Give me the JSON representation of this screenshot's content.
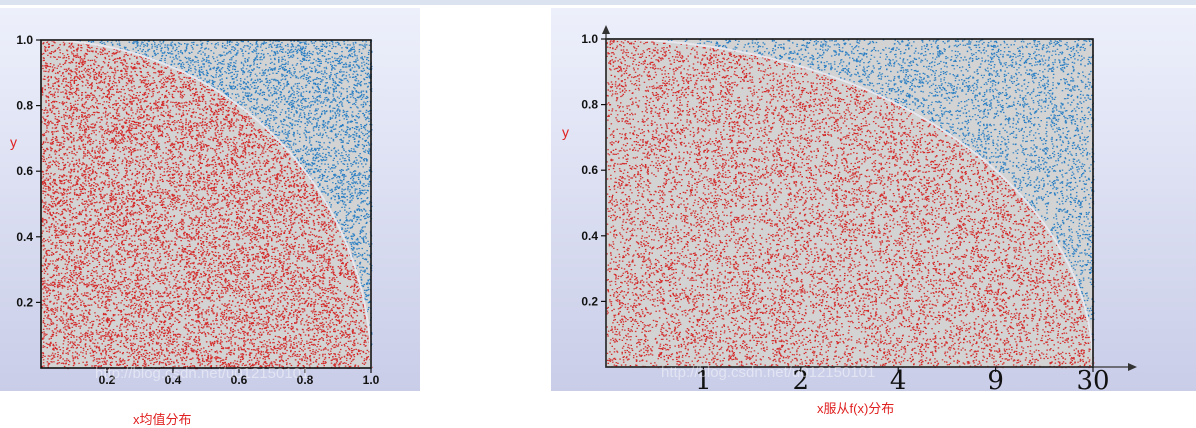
{
  "chart_data": [
    {
      "type": "scatter",
      "title": "",
      "xlabel": "",
      "ylabel": "y",
      "xlim": [
        0,
        1
      ],
      "ylim": [
        0,
        1
      ],
      "x_ticks": [
        "0.2",
        "0.4",
        "0.6",
        "0.8",
        "1.0"
      ],
      "y_ticks": [
        "0.2",
        "0.4",
        "0.6",
        "0.8",
        "1.0"
      ],
      "series": [
        {
          "name": "",
          "color": "#d42a2a",
          "region": "x^2 + y^2 <= 1"
        },
        {
          "name": "",
          "color": "#2a7fc4",
          "region": "x^2 + y^2 > 1"
        }
      ],
      "caption": "x均值分布",
      "watermark": "http://blog.csdn.net/u012150101",
      "grid": false,
      "legend": "none"
    },
    {
      "type": "scatter",
      "title": "",
      "xlabel": "",
      "ylabel": "y",
      "xlim": [
        0,
        1
      ],
      "ylim": [
        0,
        1
      ],
      "y_ticks": [
        "0.2",
        "0.4",
        "0.6",
        "0.8",
        "1.0"
      ],
      "handwritten_x_ticks": [
        "1",
        "2",
        "4",
        "9",
        "30"
      ],
      "series": [
        {
          "name": "",
          "color": "#d42a2a",
          "region": "x^2 + y^2 <= 1"
        },
        {
          "name": "",
          "color": "#2a7fc4",
          "region": "x^2 + y^2 > 1"
        }
      ],
      "caption": "x服从f(x)分布",
      "watermark": "http://blog.csdn.net/u012150101",
      "grid": false,
      "legend": "none"
    }
  ]
}
